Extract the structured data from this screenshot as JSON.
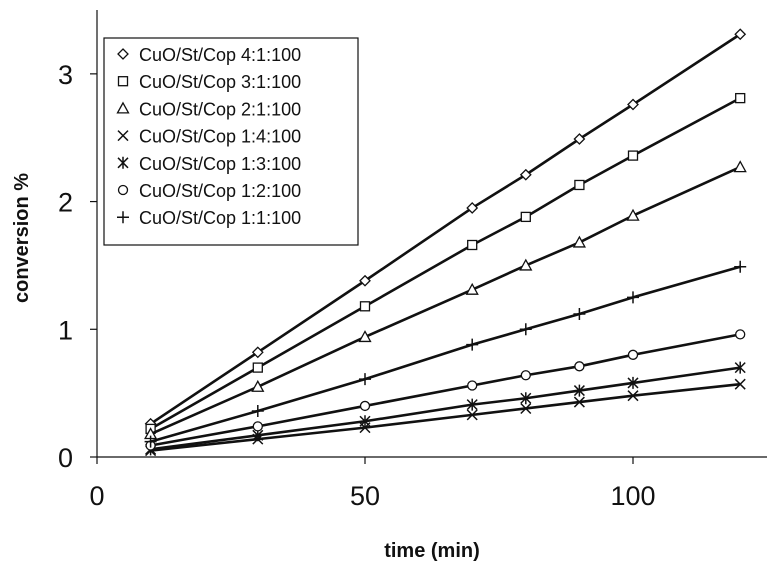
{
  "chart_data": {
    "type": "line",
    "title": "",
    "xlabel": "time (min)",
    "ylabel": "conversion %",
    "xlim": [
      0,
      125
    ],
    "ylim": [
      0,
      3.5
    ],
    "xticks": [
      0,
      50,
      100
    ],
    "yticks": [
      0,
      1,
      2,
      3
    ],
    "x": [
      10,
      30,
      50,
      70,
      80,
      90,
      100,
      120
    ],
    "grid": false,
    "legend_position": "top-left",
    "series": [
      {
        "name": "CuO/St/Cop 4:1:100",
        "marker": "diamond",
        "values": [
          0.26,
          0.82,
          1.38,
          1.95,
          2.21,
          2.49,
          2.76,
          3.31
        ]
      },
      {
        "name": "CuO/St/Cop 3:1:100",
        "marker": "square",
        "values": [
          0.22,
          0.7,
          1.18,
          1.66,
          1.88,
          2.13,
          2.36,
          2.81
        ]
      },
      {
        "name": "CuO/St/Cop 2:1:100",
        "marker": "triangle",
        "values": [
          0.18,
          0.55,
          0.94,
          1.31,
          1.5,
          1.68,
          1.89,
          2.27
        ]
      },
      {
        "name": "CuO/St/Cop 1:4:100",
        "marker": "x",
        "values": [
          0.05,
          0.14,
          0.23,
          0.33,
          0.38,
          0.43,
          0.48,
          0.57
        ]
      },
      {
        "name": "CuO/St/Cop 1:3:100",
        "marker": "asterisk",
        "values": [
          0.06,
          0.17,
          0.28,
          0.41,
          0.46,
          0.52,
          0.58,
          0.7
        ]
      },
      {
        "name": "CuO/St/Cop 1:2:100",
        "marker": "circle",
        "values": [
          0.09,
          0.24,
          0.4,
          0.56,
          0.64,
          0.71,
          0.8,
          0.96
        ]
      },
      {
        "name": "CuO/St/Cop 1:1:100",
        "marker": "plus",
        "values": [
          0.12,
          0.36,
          0.61,
          0.88,
          1.0,
          1.12,
          1.25,
          1.49
        ]
      }
    ]
  }
}
